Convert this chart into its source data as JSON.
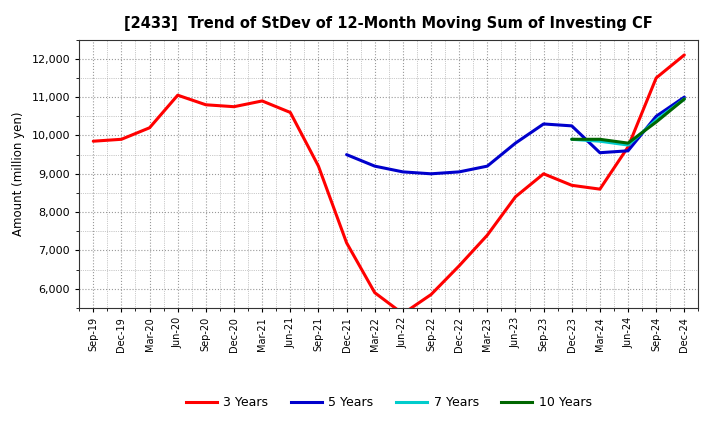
{
  "title": "[2433]  Trend of StDev of 12-Month Moving Sum of Investing CF",
  "ylabel": "Amount (million yen)",
  "background_color": "#ffffff",
  "plot_bg_color": "#ffffff",
  "grid_color": "#999999",
  "ylim": [
    5500,
    12500
  ],
  "yticks": [
    6000,
    7000,
    8000,
    9000,
    10000,
    11000,
    12000
  ],
  "x_labels": [
    "Sep-19",
    "Dec-19",
    "Mar-20",
    "Jun-20",
    "Sep-20",
    "Dec-20",
    "Mar-21",
    "Jun-21",
    "Sep-21",
    "Dec-21",
    "Mar-22",
    "Jun-22",
    "Sep-22",
    "Dec-22",
    "Mar-23",
    "Jun-23",
    "Sep-23",
    "Dec-23",
    "Mar-24",
    "Jun-24",
    "Sep-24",
    "Dec-24"
  ],
  "series": {
    "3 Years": {
      "color": "#ff0000",
      "data_x": [
        0,
        1,
        2,
        3,
        4,
        5,
        6,
        7,
        8,
        9,
        10,
        11,
        12,
        13,
        14,
        15,
        16,
        17,
        18,
        19,
        20,
        21
      ],
      "data_y": [
        9850,
        9900,
        10200,
        11050,
        10800,
        10750,
        10900,
        10600,
        9200,
        7200,
        5900,
        5350,
        5850,
        6600,
        7400,
        8400,
        9000,
        8700,
        8600,
        9700,
        11500,
        12100
      ]
    },
    "5 Years": {
      "color": "#0000cc",
      "data_x": [
        9,
        10,
        11,
        12,
        13,
        14,
        15,
        16,
        17,
        18,
        19,
        20,
        21
      ],
      "data_y": [
        9500,
        9200,
        9050,
        9000,
        9050,
        9200,
        9800,
        10300,
        10250,
        9550,
        9600,
        10500,
        11000
      ]
    },
    "7 Years": {
      "color": "#00cccc",
      "data_x": [
        17,
        18,
        19,
        20,
        21
      ],
      "data_y": [
        9900,
        9850,
        9750,
        10400,
        10950
      ]
    },
    "10 Years": {
      "color": "#006600",
      "data_x": [
        17,
        18,
        19,
        20,
        21
      ],
      "data_y": [
        9900,
        9900,
        9800,
        10350,
        10950
      ]
    }
  },
  "legend_labels": [
    "3 Years",
    "5 Years",
    "7 Years",
    "10 Years"
  ],
  "legend_colors": [
    "#ff0000",
    "#0000cc",
    "#00cccc",
    "#006600"
  ]
}
